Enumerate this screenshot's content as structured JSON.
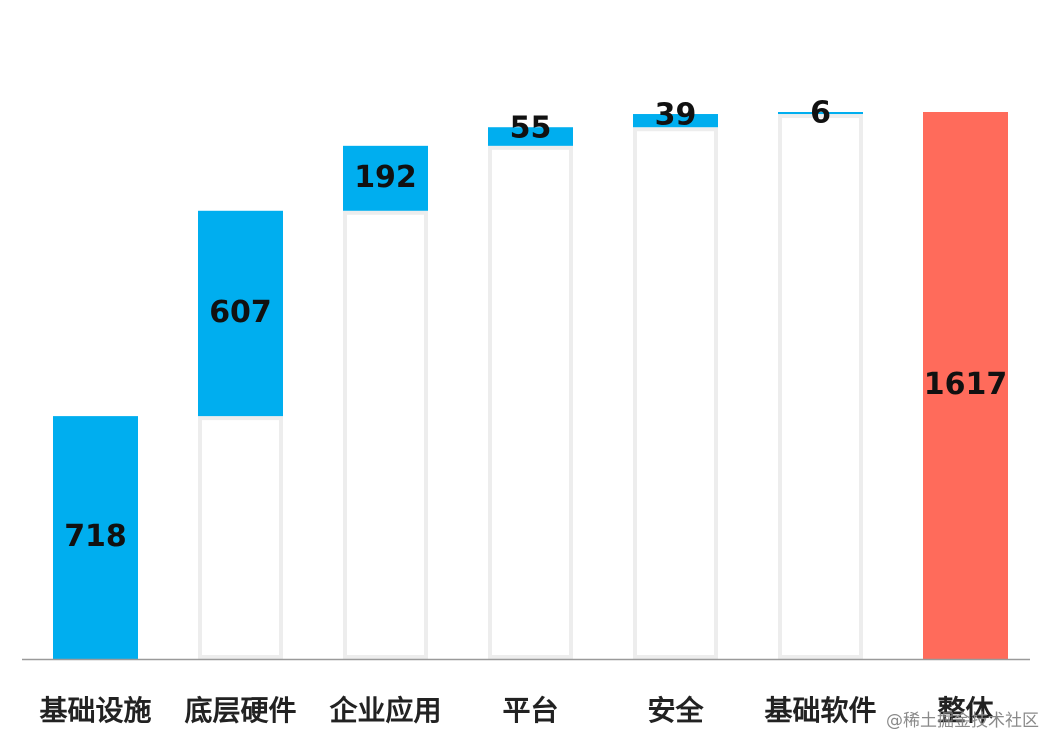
{
  "chart_data": {
    "type": "bar",
    "subtype": "waterfall",
    "categories": [
      "基础设施",
      "底层硬件",
      "企业应用",
      "平台",
      "安全",
      "基础软件",
      "整体"
    ],
    "values": [
      718,
      607,
      192,
      55,
      39,
      6,
      1617
    ],
    "total_index": 6,
    "ylim": [
      0,
      1617
    ],
    "grid": false,
    "colors": {
      "increment": "#00AEEF",
      "total": "#FF6B5B",
      "ghost": "#EDEDED",
      "axis": "#9A9A9A"
    }
  },
  "watermark": "@稀土掘金技术社区"
}
